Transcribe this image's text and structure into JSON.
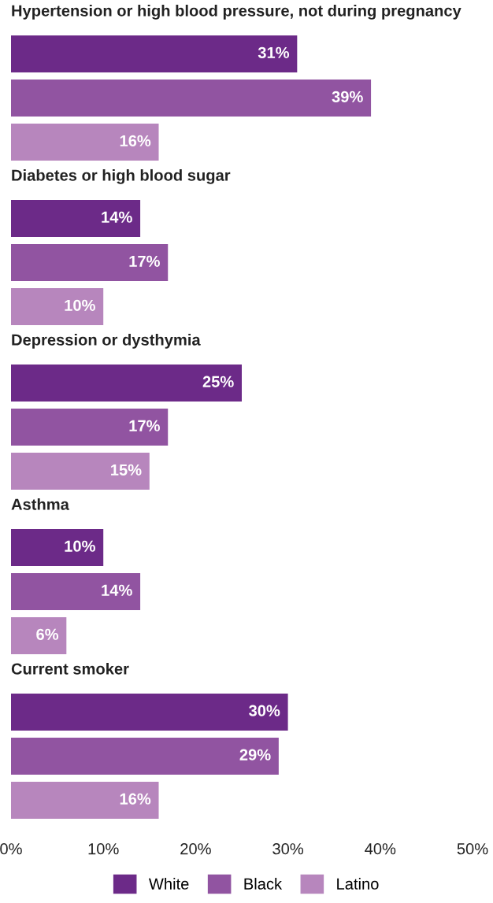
{
  "chart_data": {
    "type": "bar",
    "orientation": "horizontal",
    "categories": [
      "Hypertension or high blood pressure, not during pregnancy",
      "Diabetes or high blood sugar",
      "Depression or dysthymia",
      "Asthma",
      "Current smoker"
    ],
    "series": [
      {
        "name": "White",
        "color": "#6c2a88",
        "values": [
          31,
          14,
          25,
          10,
          30
        ],
        "value_labels": [
          "31%",
          "14%",
          "25%",
          "10%",
          "30%"
        ]
      },
      {
        "name": "Black",
        "color": "#9154a1",
        "values": [
          39,
          17,
          17,
          14,
          29
        ],
        "value_labels": [
          "39%",
          "17%",
          "17%",
          "14%",
          "29%"
        ]
      },
      {
        "name": "Latino",
        "color": "#b786bd",
        "values": [
          16,
          10,
          15,
          6,
          16
        ],
        "value_labels": [
          "16%",
          "10%",
          "15%",
          "6%",
          "16%"
        ]
      }
    ],
    "xlim": [
      0,
      50
    ],
    "xticks": [
      {
        "value": 0,
        "label": "0%"
      },
      {
        "value": 10,
        "label": "10%"
      },
      {
        "value": 20,
        "label": "20%"
      },
      {
        "value": 30,
        "label": "30%"
      },
      {
        "value": 40,
        "label": "40%"
      },
      {
        "value": 50,
        "label": "50%"
      }
    ],
    "grid": false,
    "legend": "bottom"
  }
}
